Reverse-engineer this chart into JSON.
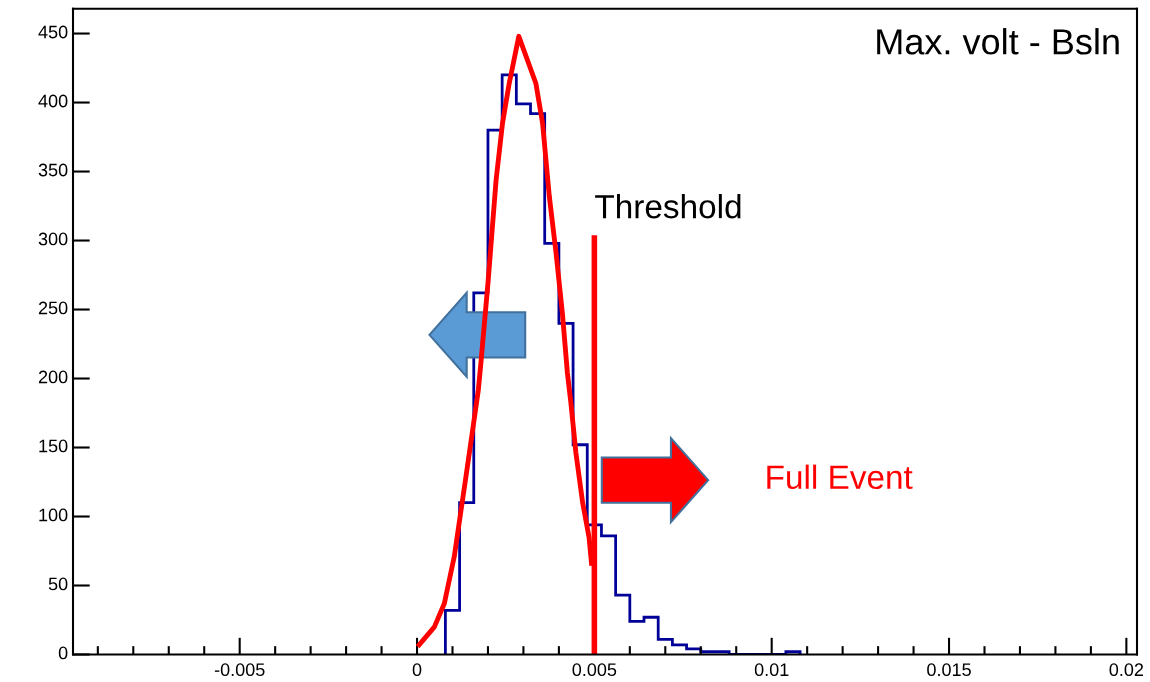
{
  "chart_data": {
    "type": "histogram",
    "title": "Max. volt - Bsln",
    "bins": [
      0.0008,
      0.0012,
      0.0016,
      0.002,
      0.0024,
      0.0028,
      0.0032,
      0.0036,
      0.004,
      0.0044,
      0.0048,
      0.0052,
      0.0056,
      0.006,
      0.0064,
      0.0068,
      0.0072,
      0.0076,
      0.008,
      0.0084,
      0.0088,
      0.0092,
      0.0096,
      0.01,
      0.0104,
      0.0108
    ],
    "values": [
      32,
      110,
      262,
      380,
      420,
      399,
      392,
      298,
      240,
      152,
      94,
      86,
      43,
      24,
      27,
      11,
      7,
      4,
      2,
      2,
      0,
      0,
      0,
      0,
      2
    ],
    "color": "#000099",
    "series": [
      {
        "type": "line",
        "color": "#ff0000",
        "x": [
          6e-05,
          0.00049,
          0.00077,
          0.00105,
          0.00138,
          0.00157,
          0.00173,
          0.0018,
          0.002,
          0.00223,
          0.00241,
          0.0026,
          0.00287,
          0.00335,
          0.00354,
          0.00373,
          0.00392,
          0.0041,
          0.00424,
          0.00434,
          0.00448,
          0.00467,
          0.00485,
          0.00492
        ],
        "values": [
          7,
          20,
          37,
          71,
          129,
          163,
          192,
          211,
          269,
          344,
          385,
          414,
          448,
          414,
          385,
          332,
          291,
          247,
          204,
          182,
          146,
          110,
          85,
          66
        ]
      }
    ],
    "ref_lines": [
      {
        "axis": "x",
        "value": 0.005,
        "label": "Threshold",
        "color": "#ff0000"
      }
    ],
    "annotations": [
      "Full Event"
    ],
    "xlim": [
      -0.0097,
      0.0203
    ],
    "ylim": [
      0,
      468
    ],
    "xticks": [
      -0.005,
      0,
      0.005,
      0.01,
      0.015,
      0.02
    ],
    "yticks": [
      0,
      50,
      100,
      150,
      200,
      250,
      300,
      350,
      400,
      450
    ],
    "grid": false,
    "legend": false
  }
}
